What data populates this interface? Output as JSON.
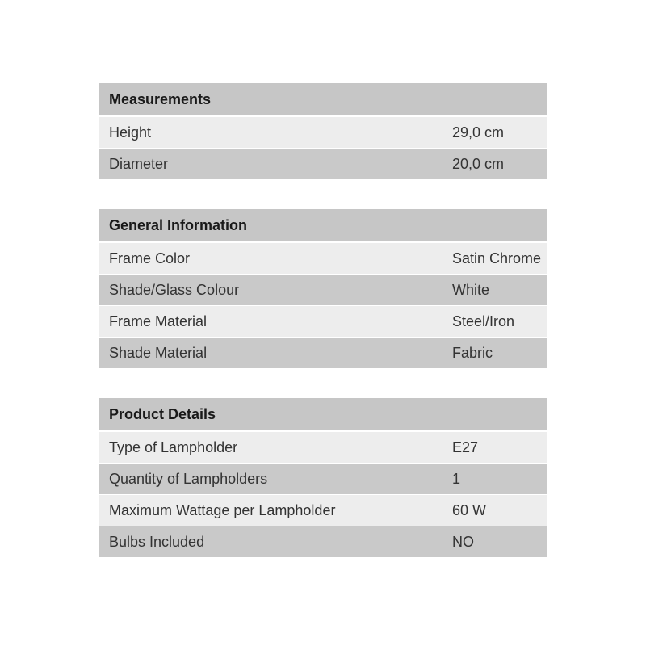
{
  "colors": {
    "page_background": "#ffffff",
    "header_bg": "#c6c6c6",
    "row_light_bg": "#ededed",
    "row_dark_bg": "#c9c9c9",
    "header_text": "#1a1a1a",
    "row_text": "#333333"
  },
  "sections": [
    {
      "title": "Measurements",
      "rows": [
        {
          "label": "Height",
          "value": "29,0 cm"
        },
        {
          "label": "Diameter",
          "value": "20,0 cm"
        }
      ]
    },
    {
      "title": "General Information",
      "rows": [
        {
          "label": "Frame Color",
          "value": "Satin Chrome"
        },
        {
          "label": "Shade/Glass Colour",
          "value": "White"
        },
        {
          "label": "Frame Material",
          "value": "Steel/Iron"
        },
        {
          "label": "Shade Material",
          "value": "Fabric"
        }
      ]
    },
    {
      "title": "Product Details",
      "rows": [
        {
          "label": "Type of Lampholder",
          "value": "E27"
        },
        {
          "label": "Quantity of Lampholders",
          "value": "1"
        },
        {
          "label": "Maximum Wattage per Lampholder",
          "value": "60 W"
        },
        {
          "label": "Bulbs Included",
          "value": "NO"
        }
      ]
    }
  ]
}
